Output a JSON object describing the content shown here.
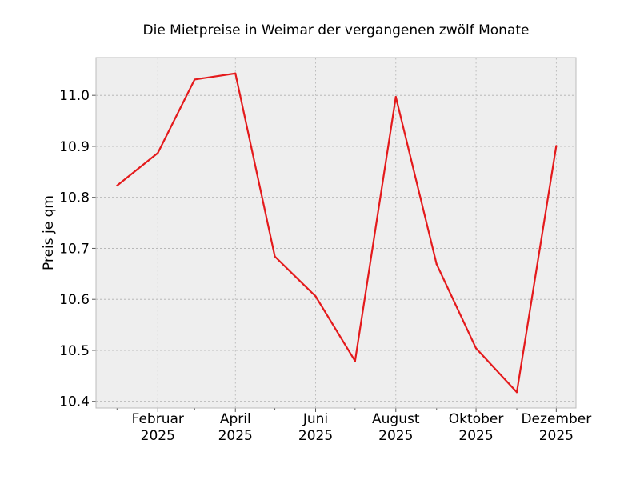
{
  "chart_data": {
    "type": "line",
    "title": "Die Mietpreise in Weimar der vergangenen zwölf Monate",
    "xlabel": "",
    "ylabel": "Preis je qm",
    "x": [
      "2025-01",
      "2025-02",
      "2025-03",
      "2025-04",
      "2025-05",
      "2025-06",
      "2025-07",
      "2025-08",
      "2025-09",
      "2025-10",
      "2025-11",
      "2025-12"
    ],
    "values": [
      10.823,
      10.887,
      11.031,
      11.043,
      10.684,
      10.606,
      10.479,
      10.997,
      10.669,
      10.504,
      10.418,
      10.901
    ],
    "xlim": [
      "2024-12-16",
      "2025-12-16"
    ],
    "ylim": [
      10.387,
      11.074
    ],
    "xticks": [
      {
        "x": "2025-02",
        "label1": "Februar",
        "label2": "2025"
      },
      {
        "x": "2025-04",
        "label1": "April",
        "label2": "2025"
      },
      {
        "x": "2025-06",
        "label1": "Juni",
        "label2": "2025"
      },
      {
        "x": "2025-08",
        "label1": "August",
        "label2": "2025"
      },
      {
        "x": "2025-10",
        "label1": "Oktober",
        "label2": "2025"
      },
      {
        "x": "2025-12",
        "label1": "Dezember",
        "label2": "2025"
      }
    ],
    "minor_xticks": [
      "2025-01",
      "2025-03",
      "2025-05",
      "2025-07",
      "2025-09",
      "2025-11"
    ],
    "yticks": [
      10.4,
      10.5,
      10.6,
      10.7,
      10.8,
      10.9,
      11.0
    ],
    "ytick_labels": [
      "10.4",
      "10.5",
      "10.6",
      "10.7",
      "10.8",
      "10.9",
      "11.0"
    ],
    "grid": true,
    "line_color": "#e41a1c",
    "background_color": "#eeeeee"
  }
}
